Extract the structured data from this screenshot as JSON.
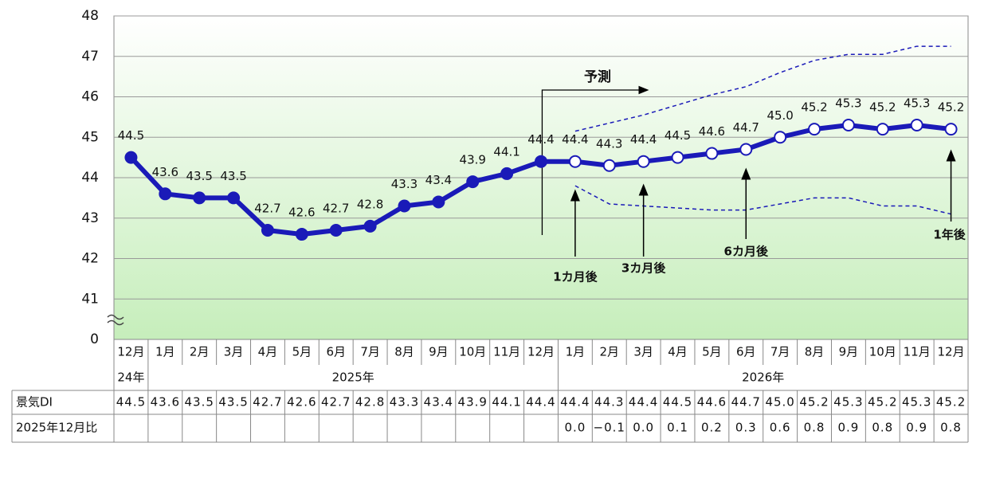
{
  "chart_data": {
    "type": "line",
    "categories": [
      "12月",
      "1月",
      "2月",
      "3月",
      "4月",
      "5月",
      "6月",
      "7月",
      "8月",
      "9月",
      "10月",
      "11月",
      "12月",
      "1月",
      "2月",
      "3月",
      "4月",
      "5月",
      "6月",
      "7月",
      "8月",
      "9月",
      "10月",
      "11月",
      "12月"
    ],
    "years": [
      "24年",
      "2025年",
      "2026年"
    ],
    "series": [
      {
        "name": "景気DI",
        "color": "#1a1ab8",
        "values": [
          44.5,
          43.6,
          43.5,
          43.5,
          42.7,
          42.6,
          42.7,
          42.8,
          43.3,
          43.4,
          43.9,
          44.1,
          44.4,
          44.4,
          44.3,
          44.4,
          44.5,
          44.6,
          44.7,
          45.0,
          45.2,
          45.3,
          45.2,
          45.3,
          45.2
        ],
        "value_labels": [
          "44.5",
          "43.6",
          "43.5",
          "43.5",
          "42.7",
          "42.6",
          "42.7",
          "42.8",
          "43.3",
          "43.4",
          "43.9",
          "44.1",
          "44.4",
          "44.4",
          "44.3",
          "44.4",
          "44.5",
          "44.6",
          "44.7",
          "45.0",
          "45.2",
          "45.3",
          "45.2",
          "45.3",
          "45.2"
        ]
      },
      {
        "color": "#1a1ab8",
        "dash": true,
        "values": [
          null,
          null,
          null,
          null,
          null,
          null,
          null,
          null,
          null,
          null,
          null,
          null,
          null,
          45.15,
          45.35,
          45.55,
          45.8,
          46.05,
          46.25,
          46.6,
          46.9,
          47.05,
          47.05,
          47.25,
          47.25
        ]
      },
      {
        "color": "#1a1ab8",
        "dash": true,
        "values": [
          null,
          null,
          null,
          null,
          null,
          null,
          null,
          null,
          null,
          null,
          null,
          null,
          null,
          43.8,
          43.35,
          43.3,
          43.25,
          43.2,
          43.2,
          43.35,
          43.5,
          43.5,
          43.3,
          43.3,
          43.1
        ]
      }
    ],
    "forecast": {
      "label": "予測",
      "start": 13
    },
    "annotations": [
      {
        "label": "1カ月後",
        "index": 13
      },
      {
        "label": "3カ月後",
        "index": 15
      },
      {
        "label": "6カ月後",
        "index": 18
      },
      {
        "label": "1年後",
        "index": 24
      }
    ],
    "ylim": [
      40,
      48
    ],
    "yticks": [
      41,
      42,
      43,
      44,
      45,
      46,
      47,
      48
    ],
    "y_break_label": "0",
    "grid": true,
    "table": {
      "row_labels": [
        "景気DI",
        "2025年12月比"
      ],
      "diff": [
        "0.0",
        "−0.1",
        "0.0",
        "0.1",
        "0.2",
        "0.3",
        "0.6",
        "0.8",
        "0.9",
        "0.8",
        "0.9",
        "0.8"
      ]
    }
  }
}
